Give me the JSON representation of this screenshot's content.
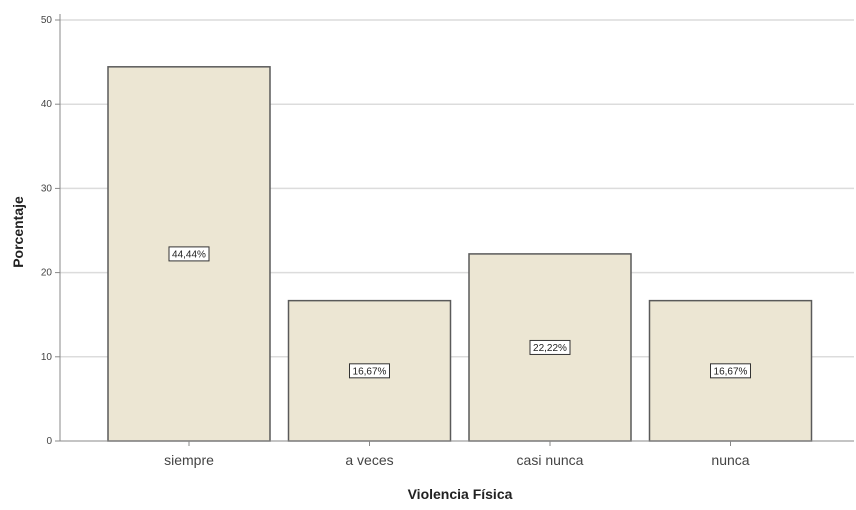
{
  "chart_data": {
    "type": "bar",
    "title": "",
    "xlabel": "Violencia Física",
    "ylabel": "Porcentaje",
    "categories": [
      "siempre",
      "a veces",
      "casi nunca",
      "nunca"
    ],
    "values": [
      44.44,
      16.67,
      22.22,
      16.67
    ],
    "data_labels": [
      "44,44%",
      "16,67%",
      "22,22%",
      "16,67%"
    ],
    "ylim": [
      0,
      50
    ],
    "yticks": [
      0,
      10,
      20,
      30,
      40,
      50
    ],
    "grid": true,
    "legend": "none",
    "colors": {
      "bar_fill": "#ece6d3",
      "bar_stroke": "#5a5a5a",
      "grid": "#dcdcdc",
      "axis": "#888888"
    }
  }
}
